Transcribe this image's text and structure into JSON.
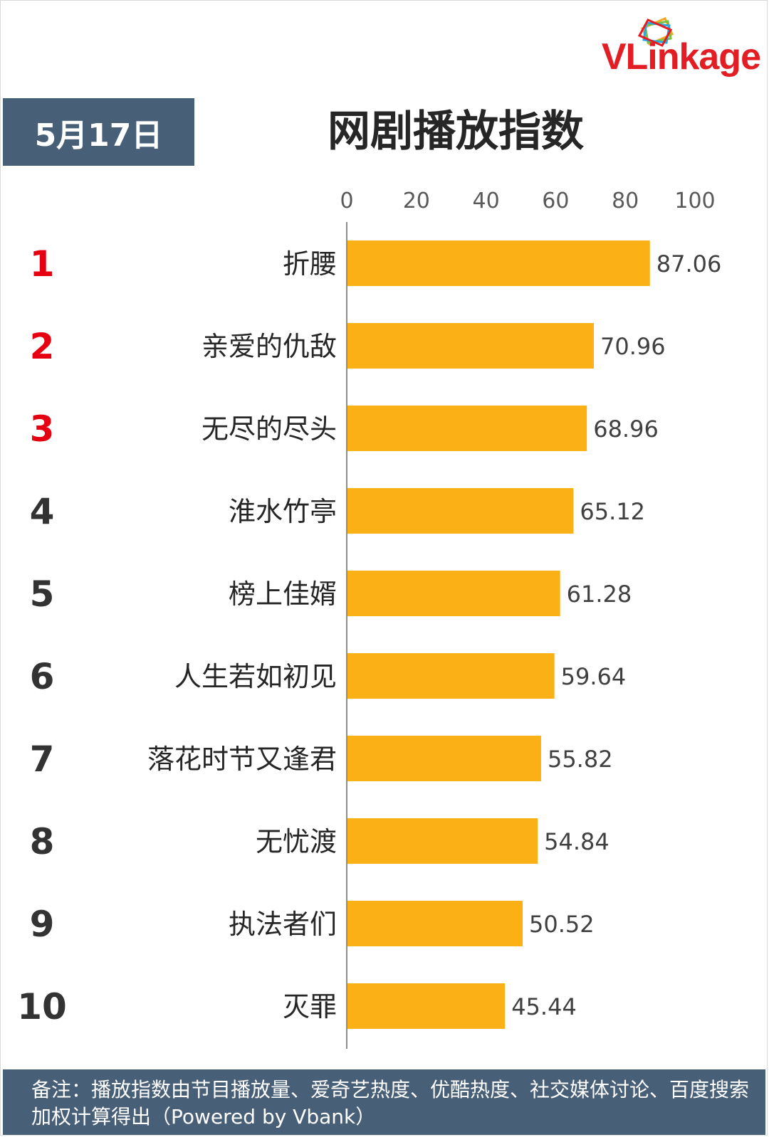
{
  "logo": {
    "text": "VLinkage"
  },
  "date_badge": "5月17日",
  "title": "网剧播放指数",
  "footer_note": "备注：播放指数由节目播放量、爱奇艺热度、优酷热度、社交媒体讨论、百度搜索加权计算得出（Powered by Vbank）",
  "colors": {
    "bar": "#fbb116",
    "rank_top": "#e50012",
    "rank_other": "#333333",
    "header_bg": "#485f78",
    "logo": "#e21d24"
  },
  "chart_data": {
    "type": "bar",
    "orientation": "horizontal",
    "title": "网剧播放指数",
    "xlim": [
      0,
      100
    ],
    "x_ticks": [
      "0",
      "20",
      "40",
      "60",
      "80",
      "100"
    ],
    "x_tick_values": [
      0,
      20,
      40,
      60,
      80,
      100
    ],
    "axis_position": "top",
    "grid": false,
    "ranks": [
      "1",
      "2",
      "3",
      "4",
      "5",
      "6",
      "7",
      "8",
      "9",
      "10"
    ],
    "categories": [
      "折腰",
      "亲爱的仇敌",
      "无尽的尽头",
      "淮水竹亭",
      "榜上佳婿",
      "人生若如初见",
      "落花时节又逢君",
      "无忧渡",
      "执法者们",
      "灭罪"
    ],
    "values": [
      87.06,
      70.96,
      68.96,
      65.12,
      61.28,
      59.64,
      55.82,
      54.84,
      50.52,
      45.44
    ],
    "value_labels": [
      "87.06",
      "70.96",
      "68.96",
      "65.12",
      "61.28",
      "59.64",
      "55.82",
      "54.84",
      "50.52",
      "45.44"
    ]
  }
}
